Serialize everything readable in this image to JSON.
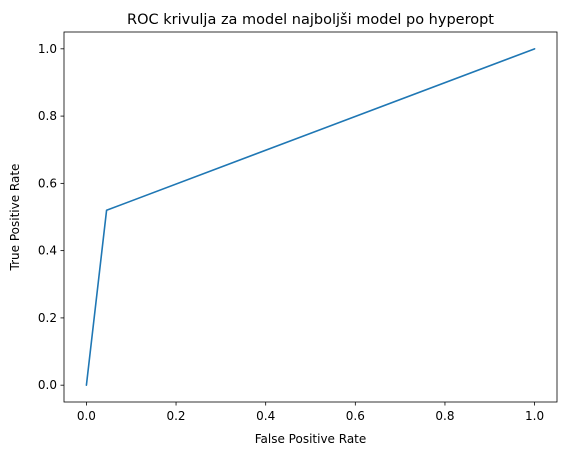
{
  "chart_data": {
    "type": "line",
    "title": "ROC krivulja za model najboljši model po hyperopt",
    "xlabel": "False Positive Rate",
    "ylabel": "True Positive Rate",
    "xlim": [
      -0.05,
      1.05
    ],
    "ylim": [
      -0.05,
      1.05
    ],
    "xticks": [
      0.0,
      0.2,
      0.4,
      0.6,
      0.8,
      1.0
    ],
    "yticks": [
      0.0,
      0.2,
      0.4,
      0.6,
      0.8,
      1.0
    ],
    "x_tick_labels": [
      "0.0",
      "0.2",
      "0.4",
      "0.6",
      "0.8",
      "1.0"
    ],
    "y_tick_labels": [
      "0.0",
      "0.2",
      "0.4",
      "0.6",
      "0.8",
      "1.0"
    ],
    "grid": false,
    "legend": "none",
    "series": [
      {
        "color": "#1f77b4",
        "x": [
          0.0,
          0.045,
          1.0
        ],
        "y": [
          0.0,
          0.52,
          1.0
        ]
      }
    ]
  }
}
